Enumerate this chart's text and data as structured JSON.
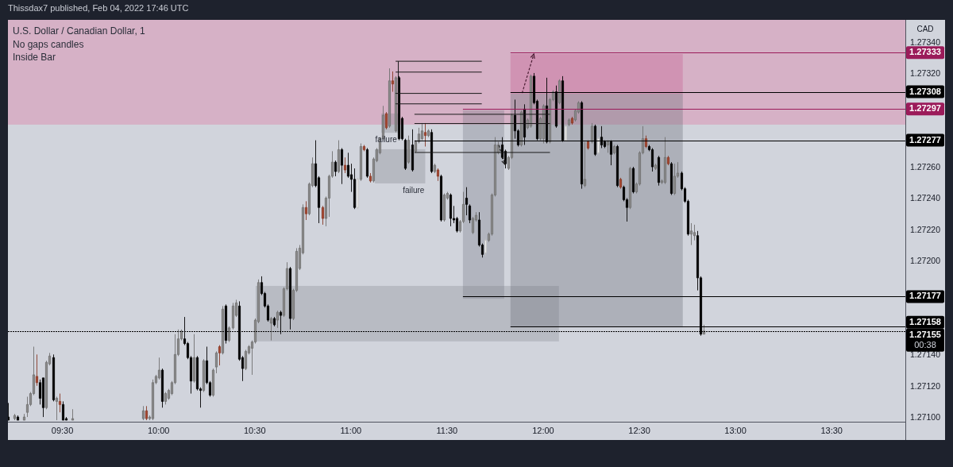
{
  "chart_data": {
    "type": "candlestick",
    "title": "U.S. Dollar / Canadian Dollar, 1",
    "subtitle": "No gaps candles\nInside Bar",
    "ylabel": "CAD",
    "annotations": [
      "Thissdax7 published, Feb 04, 2022 17:46 UTC",
      {
        "text": "failure",
        "x": "2022-02-04T11:11",
        "y": 1.27278
      },
      "failure"
    ],
    "xlim": [
      "2022-02-04T09:13",
      "2022-02-04T13:53"
    ],
    "xticks": [
      {
        "value": "2022-02-04T09:30",
        "label": "09:30"
      },
      {
        "value": "2022-02-04T10:00",
        "label": "10:00"
      },
      {
        "value": "2022-02-04T10:30",
        "label": "10:30"
      },
      {
        "value": "2022-02-04T11:00",
        "label": "11:00"
      },
      {
        "value": "2022-02-04T11:30",
        "label": "11:30"
      },
      {
        "value": "2022-02-04T12:00",
        "label": "12:00"
      },
      {
        "value": "2022-02-04T12:30",
        "label": "12:30"
      },
      {
        "value": "2022-02-04T13:00",
        "label": "13:00"
      },
      {
        "value": "2022-02-04T13:30",
        "label": "13:30"
      }
    ],
    "ylim": [
      1.27097,
      1.27354
    ],
    "yticks": [
      {
        "value": 1.271,
        "label": "1.27100"
      },
      {
        "value": 1.2712,
        "label": "1.27120"
      },
      {
        "value": 1.2714,
        "label": "1.27140"
      },
      {
        "value": 1.272,
        "label": "1.27200"
      },
      {
        "value": 1.2722,
        "label": "1.27220"
      },
      {
        "value": 1.2724,
        "label": "1.27240"
      },
      {
        "value": 1.2726,
        "label": "1.27260"
      },
      {
        "value": 1.2732,
        "label": "1.27320"
      },
      {
        "value": 1.2734,
        "label": "1.27340"
      }
    ],
    "bands": [
      {
        "axis": "y",
        "from": 1.27287,
        "to": 1.27354,
        "color": "#d6b1c6"
      }
    ],
    "ref_lines": [
      {
        "axis": "y",
        "value": 1.27333,
        "label": "1.27333",
        "color": "#9b1b5a"
      },
      {
        "axis": "y",
        "value": 1.27308,
        "label": "1.27308",
        "color": "#000000"
      },
      {
        "axis": "y",
        "value": 1.27297,
        "label": "1.27297",
        "color": "#9b1b5a"
      },
      {
        "axis": "y",
        "value": 1.27277,
        "label": "1.27277",
        "color": "#000000"
      },
      {
        "axis": "y",
        "value": 1.27177,
        "label": "1.27177",
        "color": "#000000"
      },
      {
        "axis": "y",
        "value": 1.27158,
        "label": "1.27158",
        "color": "#000000"
      },
      {
        "axis": "y",
        "value": 1.27155,
        "label": "1.27155\n00:38",
        "color": "#000000",
        "line_style": "dotted"
      }
    ],
    "x": [
      "2022-02-04T09:13",
      "2022-02-04T09:15",
      "2022-02-04T09:16",
      "2022-02-04T09:18",
      "2022-02-04T09:19",
      "2022-02-04T09:20",
      "2022-02-04T09:21",
      "2022-02-04T09:22",
      "2022-02-04T09:23",
      "2022-02-04T09:24",
      "2022-02-04T09:25",
      "2022-02-04T09:26",
      "2022-02-04T09:27",
      "2022-02-04T09:28",
      "2022-02-04T09:29",
      "2022-02-04T09:30",
      "2022-02-04T09:31",
      "2022-02-04T09:33",
      "2022-02-04T09:55",
      "2022-02-04T09:56",
      "2022-02-04T09:57",
      "2022-02-04T09:58",
      "2022-02-04T09:59",
      "2022-02-04T10:00",
      "2022-02-04T10:01",
      "2022-02-04T10:02",
      "2022-02-04T10:03",
      "2022-02-04T10:04",
      "2022-02-04T10:05",
      "2022-02-04T10:06",
      "2022-02-04T10:07",
      "2022-02-04T10:08",
      "2022-02-04T10:09",
      "2022-02-04T10:10",
      "2022-02-04T10:11",
      "2022-02-04T10:12",
      "2022-02-04T10:13",
      "2022-02-04T10:14",
      "2022-02-04T10:15",
      "2022-02-04T10:16",
      "2022-02-04T10:17",
      "2022-02-04T10:18",
      "2022-02-04T10:19",
      "2022-02-04T10:20",
      "2022-02-04T10:21",
      "2022-02-04T10:22",
      "2022-02-04T10:23",
      "2022-02-04T10:24",
      "2022-02-04T10:25",
      "2022-02-04T10:26",
      "2022-02-04T10:27",
      "2022-02-04T10:28",
      "2022-02-04T10:29",
      "2022-02-04T10:30",
      "2022-02-04T10:31",
      "2022-02-04T10:32",
      "2022-02-04T10:33",
      "2022-02-04T10:34",
      "2022-02-04T10:35",
      "2022-02-04T10:36",
      "2022-02-04T10:37",
      "2022-02-04T10:38",
      "2022-02-04T10:39",
      "2022-02-04T10:40",
      "2022-02-04T10:41",
      "2022-02-04T10:42",
      "2022-02-04T10:43",
      "2022-02-04T10:44",
      "2022-02-04T10:45",
      "2022-02-04T10:46",
      "2022-02-04T10:47",
      "2022-02-04T10:48",
      "2022-02-04T10:49",
      "2022-02-04T10:50",
      "2022-02-04T10:51",
      "2022-02-04T10:52",
      "2022-02-04T10:53",
      "2022-02-04T10:54",
      "2022-02-04T10:55",
      "2022-02-04T10:56",
      "2022-02-04T10:57",
      "2022-02-04T10:58",
      "2022-02-04T10:59",
      "2022-02-04T11:00",
      "2022-02-04T11:01",
      "2022-02-04T11:02",
      "2022-02-04T11:03",
      "2022-02-04T11:04",
      "2022-02-04T11:05",
      "2022-02-04T11:06",
      "2022-02-04T11:07",
      "2022-02-04T11:08",
      "2022-02-04T11:09",
      "2022-02-04T11:10",
      "2022-02-04T11:11",
      "2022-02-04T11:12",
      "2022-02-04T11:13",
      "2022-02-04T11:14",
      "2022-02-04T11:15",
      "2022-02-04T11:16",
      "2022-02-04T11:17",
      "2022-02-04T11:18",
      "2022-02-04T11:19",
      "2022-02-04T11:20",
      "2022-02-04T11:21",
      "2022-02-04T11:22",
      "2022-02-04T11:23",
      "2022-02-04T11:24",
      "2022-02-04T11:25",
      "2022-02-04T11:26",
      "2022-02-04T11:27",
      "2022-02-04T11:28",
      "2022-02-04T11:29",
      "2022-02-04T11:30",
      "2022-02-04T11:31",
      "2022-02-04T11:32",
      "2022-02-04T11:33",
      "2022-02-04T11:34",
      "2022-02-04T11:35",
      "2022-02-04T11:36",
      "2022-02-04T11:37",
      "2022-02-04T11:38",
      "2022-02-04T11:39",
      "2022-02-04T11:40",
      "2022-02-04T11:41",
      "2022-02-04T11:42",
      "2022-02-04T11:43",
      "2022-02-04T11:44",
      "2022-02-04T11:45",
      "2022-02-04T11:46",
      "2022-02-04T11:47",
      "2022-02-04T11:48",
      "2022-02-04T11:49",
      "2022-02-04T11:50",
      "2022-02-04T11:51",
      "2022-02-04T11:52",
      "2022-02-04T11:53",
      "2022-02-04T11:54",
      "2022-02-04T11:55",
      "2022-02-04T11:56",
      "2022-02-04T11:57",
      "2022-02-04T11:58",
      "2022-02-04T11:59",
      "2022-02-04T12:00",
      "2022-02-04T12:01",
      "2022-02-04T12:02",
      "2022-02-04T12:03",
      "2022-02-04T12:04",
      "2022-02-04T12:05",
      "2022-02-04T12:06",
      "2022-02-04T12:07",
      "2022-02-04T12:08",
      "2022-02-04T12:09",
      "2022-02-04T12:10",
      "2022-02-04T12:11",
      "2022-02-04T12:12",
      "2022-02-04T12:13",
      "2022-02-04T12:14",
      "2022-02-04T12:15",
      "2022-02-04T12:16",
      "2022-02-04T12:17",
      "2022-02-04T12:18",
      "2022-02-04T12:19",
      "2022-02-04T12:20",
      "2022-02-04T12:21",
      "2022-02-04T12:22",
      "2022-02-04T12:23",
      "2022-02-04T12:24",
      "2022-02-04T12:25",
      "2022-02-04T12:26",
      "2022-02-04T12:27",
      "2022-02-04T12:28",
      "2022-02-04T12:29",
      "2022-02-04T12:30",
      "2022-02-04T12:31",
      "2022-02-04T12:32",
      "2022-02-04T12:33",
      "2022-02-04T12:34",
      "2022-02-04T12:35",
      "2022-02-04T12:36",
      "2022-02-04T12:37",
      "2022-02-04T12:38",
      "2022-02-04T12:39",
      "2022-02-04T12:40",
      "2022-02-04T12:41",
      "2022-02-04T12:42",
      "2022-02-04T12:43",
      "2022-02-04T12:44",
      "2022-02-04T12:45",
      "2022-02-04T12:46",
      "2022-02-04T12:47",
      "2022-02-04T12:48",
      "2022-02-04T12:49",
      "2022-02-04T12:50"
    ],
    "ohlc": [
      [
        1.271,
        1.27109,
        1.27098,
        1.27098
      ],
      [
        1.27099,
        1.27102,
        1.27098,
        1.27101
      ],
      [
        1.271,
        1.27101,
        1.27098,
        1.27098
      ],
      [
        1.27098,
        1.27102,
        1.27098,
        1.271
      ],
      [
        1.27103,
        1.27113,
        1.271,
        1.27108
      ],
      [
        1.27108,
        1.27116,
        1.27107,
        1.27115
      ],
      [
        1.27115,
        1.27145,
        1.27114,
        1.27127
      ],
      [
        1.27126,
        1.2714,
        1.2712,
        1.27122
      ],
      [
        1.27122,
        1.27124,
        1.27108,
        1.27112
      ],
      [
        1.27125,
        1.27125,
        1.271,
        1.27106
      ],
      [
        1.27106,
        1.27136,
        1.27105,
        1.27135
      ],
      [
        1.27134,
        1.27141,
        1.27133,
        1.27139
      ],
      [
        1.27138,
        1.2714,
        1.2711,
        1.27111
      ],
      [
        1.2711,
        1.27113,
        1.27098,
        1.27112
      ],
      [
        1.2711,
        1.27115,
        1.27103,
        1.27108
      ],
      [
        1.27108,
        1.2711,
        1.27098,
        1.27098
      ],
      [
        1.27099,
        1.271,
        1.27098,
        1.27098
      ],
      [
        1.27098,
        1.27105,
        1.27098,
        1.27099
      ],
      [
        1.27099,
        1.27107,
        1.27098,
        1.27104
      ],
      [
        1.27104,
        1.27107,
        1.27098,
        1.27099
      ],
      [
        1.27099,
        1.27101,
        1.27098,
        1.271
      ],
      [
        1.27099,
        1.27124,
        1.27098,
        1.27122
      ],
      [
        1.27122,
        1.27127,
        1.27121,
        1.27126
      ],
      [
        1.27125,
        1.27138,
        1.27124,
        1.2713
      ],
      [
        1.2713,
        1.27131,
        1.27106,
        1.2711
      ],
      [
        1.2711,
        1.27116,
        1.27108,
        1.27115
      ],
      [
        1.27112,
        1.27118,
        1.27111,
        1.27117
      ],
      [
        1.27115,
        1.27123,
        1.27114,
        1.27122
      ],
      [
        1.27122,
        1.27153,
        1.27121,
        1.2714
      ],
      [
        1.2714,
        1.27156,
        1.27139,
        1.2715
      ],
      [
        1.2715,
        1.27156,
        1.27149,
        1.27155
      ],
      [
        1.2715,
        1.27164,
        1.27146,
        1.27147
      ],
      [
        1.27147,
        1.27148,
        1.27137,
        1.27138
      ],
      [
        1.27138,
        1.27139,
        1.27115,
        1.27123
      ],
      [
        1.27123,
        1.27153,
        1.27122,
        1.27138
      ],
      [
        1.27138,
        1.27139,
        1.27117,
        1.27118
      ],
      [
        1.27118,
        1.27119,
        1.27106,
        1.27117
      ],
      [
        1.27117,
        1.27137,
        1.27116,
        1.27136
      ],
      [
        1.27136,
        1.27145,
        1.27121,
        1.27122
      ],
      [
        1.27122,
        1.27123,
        1.27113,
        1.27114
      ],
      [
        1.27114,
        1.27131,
        1.27113,
        1.2713
      ],
      [
        1.27132,
        1.27142,
        1.27128,
        1.27141
      ],
      [
        1.27141,
        1.27146,
        1.27133,
        1.27145
      ],
      [
        1.27141,
        1.27171,
        1.2714,
        1.27169
      ],
      [
        1.27171,
        1.27172,
        1.27147,
        1.27149
      ],
      [
        1.27149,
        1.27158,
        1.27148,
        1.27157
      ],
      [
        1.27157,
        1.27173,
        1.27156,
        1.27171
      ],
      [
        1.27165,
        1.27175,
        1.27164,
        1.27173
      ],
      [
        1.27171,
        1.27174,
        1.27136,
        1.27137
      ],
      [
        1.27138,
        1.27139,
        1.27123,
        1.27131
      ],
      [
        1.27131,
        1.27143,
        1.2713,
        1.27142
      ],
      [
        1.27141,
        1.27146,
        1.2714,
        1.27145
      ],
      [
        1.27144,
        1.27149,
        1.27127,
        1.27148
      ],
      [
        1.27148,
        1.27163,
        1.27147,
        1.27162
      ],
      [
        1.27161,
        1.27188,
        1.2716,
        1.27186
      ],
      [
        1.27186,
        1.2719,
        1.27178,
        1.27179
      ],
      [
        1.27179,
        1.2718,
        1.2717,
        1.27171
      ],
      [
        1.27171,
        1.27172,
        1.27161,
        1.27162
      ],
      [
        1.2716,
        1.27164,
        1.27149,
        1.27163
      ],
      [
        1.27163,
        1.27164,
        1.27158,
        1.27159
      ],
      [
        1.27162,
        1.27168,
        1.27157,
        1.27167
      ],
      [
        1.27167,
        1.27168,
        1.27153,
        1.27165
      ],
      [
        1.27165,
        1.27183,
        1.27164,
        1.27182
      ],
      [
        1.27182,
        1.27199,
        1.27181,
        1.27195
      ],
      [
        1.27195,
        1.27196,
        1.27156,
        1.27163
      ],
      [
        1.27163,
        1.27182,
        1.27162,
        1.27181
      ],
      [
        1.27181,
        1.27208,
        1.2718,
        1.27206
      ],
      [
        1.27195,
        1.2721,
        1.27194,
        1.27208
      ],
      [
        1.27205,
        1.27236,
        1.27204,
        1.27234
      ],
      [
        1.27234,
        1.27238,
        1.27226,
        1.2723
      ],
      [
        1.2723,
        1.2725,
        1.27229,
        1.27249
      ],
      [
        1.27248,
        1.27266,
        1.27247,
        1.27262
      ],
      [
        1.27262,
        1.27277,
        1.27247,
        1.27248
      ],
      [
        1.27253,
        1.27254,
        1.27224,
        1.27234
      ],
      [
        1.27234,
        1.27235,
        1.27223,
        1.27227
      ],
      [
        1.27227,
        1.27241,
        1.27222,
        1.2724
      ],
      [
        1.2724,
        1.27255,
        1.27228,
        1.27254
      ],
      [
        1.27254,
        1.2727,
        1.27253,
        1.27263
      ],
      [
        1.27263,
        1.27264,
        1.27254,
        1.27257
      ],
      [
        1.27257,
        1.27277,
        1.27256,
        1.27271
      ],
      [
        1.27271,
        1.27272,
        1.27249,
        1.27261
      ],
      [
        1.27261,
        1.27266,
        1.27256,
        1.27258
      ],
      [
        1.27261,
        1.27269,
        1.27253,
        1.27254
      ],
      [
        1.27255,
        1.27262,
        1.27244,
        1.27252
      ],
      [
        1.27252,
        1.27259,
        1.27233,
        1.27234
      ],
      [
        1.27234,
        1.27253,
        1.27233,
        1.27252
      ],
      [
        1.27252,
        1.27275,
        1.27251,
        1.27273
      ],
      [
        1.27273,
        1.27274,
        1.2727,
        1.27271
      ],
      [
        1.27271,
        1.27272,
        1.27253,
        1.27254
      ],
      [
        1.27254,
        1.27256,
        1.2725,
        1.27251
      ],
      [
        1.27251,
        1.27266,
        1.2725,
        1.27265
      ],
      [
        1.27264,
        1.27272,
        1.27263,
        1.27271
      ],
      [
        1.27269,
        1.27279,
        1.27268,
        1.27278
      ],
      [
        1.27278,
        1.27299,
        1.27277,
        1.27293
      ],
      [
        1.27294,
        1.27295,
        1.27284,
        1.27285
      ],
      [
        1.27286,
        1.27323,
        1.27285,
        1.27315
      ],
      [
        1.27315,
        1.27321,
        1.27308,
        1.27313
      ],
      [
        1.27283,
        1.27318,
        1.27282,
        1.27317
      ],
      [
        1.27317,
        1.27318,
        1.27277,
        1.27278
      ],
      [
        1.27291,
        1.27292,
        1.27277,
        1.27278
      ],
      [
        1.27277,
        1.27278,
        1.27258,
        1.27259
      ],
      [
        1.27263,
        1.2728,
        1.27262,
        1.27277
      ],
      [
        1.27274,
        1.27284,
        1.27257,
        1.27258
      ],
      [
        1.2727,
        1.27277,
        1.27269,
        1.27276
      ],
      [
        1.27276,
        1.27285,
        1.27275,
        1.27281
      ],
      [
        1.27278,
        1.27288,
        1.27277,
        1.27283
      ],
      [
        1.27282,
        1.27288,
        1.27273,
        1.2728
      ],
      [
        1.2728,
        1.27284,
        1.27279,
        1.27283
      ],
      [
        1.27282,
        1.27284,
        1.27256,
        1.27257
      ],
      [
        1.27257,
        1.27262,
        1.27256,
        1.27261
      ],
      [
        1.27258,
        1.27259,
        1.27251,
        1.27254
      ],
      [
        1.27254,
        1.27255,
        1.27225,
        1.27226
      ],
      [
        1.27226,
        1.27243,
        1.27225,
        1.27242
      ],
      [
        1.2724,
        1.27244,
        1.27239,
        1.27243
      ],
      [
        1.27242,
        1.27243,
        1.27222,
        1.27227
      ],
      [
        1.27227,
        1.27235,
        1.27224,
        1.27226
      ],
      [
        1.27227,
        1.27228,
        1.27218,
        1.27219
      ],
      [
        1.27219,
        1.27226,
        1.27218,
        1.27225
      ],
      [
        1.27225,
        1.27244,
        1.27224,
        1.27236
      ],
      [
        1.2724,
        1.27247,
        1.27229,
        1.27236
      ],
      [
        1.27235,
        1.27236,
        1.27224,
        1.27226
      ],
      [
        1.27218,
        1.27228,
        1.27217,
        1.27227
      ],
      [
        1.27226,
        1.27231,
        1.27225,
        1.27229
      ],
      [
        1.27226,
        1.27231,
        1.27209,
        1.2721
      ],
      [
        1.2721,
        1.27211,
        1.27202,
        1.27204
      ],
      [
        1.27205,
        1.27214,
        1.27203,
        1.27213
      ],
      [
        1.27213,
        1.27218,
        1.27212,
        1.27217
      ],
      [
        1.27217,
        1.27243,
        1.27216,
        1.27242
      ],
      [
        1.27242,
        1.27279,
        1.27241,
        1.27274
      ],
      [
        1.27269,
        1.27276,
        1.27268,
        1.27274
      ],
      [
        1.27274,
        1.27279,
        1.27265,
        1.27266
      ],
      [
        1.2727,
        1.27271,
        1.27259,
        1.27262
      ],
      [
        1.27259,
        1.27267,
        1.27258,
        1.27266
      ],
      [
        1.27266,
        1.27294,
        1.27265,
        1.27293
      ],
      [
        1.27293,
        1.27303,
        1.27278,
        1.27283
      ],
      [
        1.27283,
        1.27284,
        1.27273,
        1.27274
      ],
      [
        1.27274,
        1.27296,
        1.27273,
        1.27295
      ],
      [
        1.27297,
        1.273,
        1.27274,
        1.27279
      ],
      [
        1.27285,
        1.27291,
        1.27284,
        1.2729
      ],
      [
        1.27286,
        1.27319,
        1.27285,
        1.27318
      ],
      [
        1.27318,
        1.2732,
        1.273,
        1.27301
      ],
      [
        1.27302,
        1.27303,
        1.27277,
        1.27278
      ],
      [
        1.27278,
        1.27292,
        1.27277,
        1.27291
      ],
      [
        1.27278,
        1.273,
        1.27275,
        1.27299
      ],
      [
        1.27299,
        1.27317,
        1.27275,
        1.27276
      ],
      [
        1.27276,
        1.27304,
        1.27275,
        1.27303
      ],
      [
        1.27303,
        1.27309,
        1.27302,
        1.27308
      ],
      [
        1.27308,
        1.27312,
        1.27285,
        1.27286
      ],
      [
        1.27301,
        1.27316,
        1.273,
        1.27315
      ],
      [
        1.27315,
        1.27318,
        1.27276,
        1.27277
      ],
      [
        1.27277,
        1.27287,
        1.27276,
        1.27286
      ],
      [
        1.27287,
        1.27291,
        1.27286,
        1.2729
      ],
      [
        1.27291,
        1.27292,
        1.27287,
        1.27288
      ],
      [
        1.2729,
        1.27297,
        1.27289,
        1.27296
      ],
      [
        1.27295,
        1.27302,
        1.27294,
        1.27301
      ],
      [
        1.27301,
        1.27302,
        1.27246,
        1.27249
      ],
      [
        1.27248,
        1.27276,
        1.27247,
        1.27252
      ],
      [
        1.27276,
        1.27277,
        1.27271,
        1.27272
      ],
      [
        1.27276,
        1.27288,
        1.27275,
        1.27286
      ],
      [
        1.27286,
        1.27287,
        1.27267,
        1.27268
      ],
      [
        1.27269,
        1.27279,
        1.27268,
        1.27278
      ],
      [
        1.27279,
        1.27286,
        1.27272,
        1.27274
      ],
      [
        1.27276,
        1.27277,
        1.27272,
        1.27273
      ],
      [
        1.27274,
        1.27277,
        1.27269,
        1.27276
      ],
      [
        1.27276,
        1.27277,
        1.27261,
        1.27268
      ],
      [
        1.27269,
        1.27274,
        1.27268,
        1.27273
      ],
      [
        1.27273,
        1.27274,
        1.27247,
        1.27248
      ],
      [
        1.27252,
        1.27253,
        1.27246,
        1.27247
      ],
      [
        1.27247,
        1.27248,
        1.27238,
        1.27239
      ],
      [
        1.27239,
        1.2724,
        1.27225,
        1.27234
      ],
      [
        1.27234,
        1.2726,
        1.27233,
        1.27259
      ],
      [
        1.27259,
        1.2726,
        1.27243,
        1.27244
      ],
      [
        1.27244,
        1.2725,
        1.27243,
        1.27249
      ],
      [
        1.27249,
        1.2727,
        1.27248,
        1.27269
      ],
      [
        1.27269,
        1.27286,
        1.27268,
        1.27278
      ],
      [
        1.27278,
        1.2728,
        1.27272,
        1.27273
      ],
      [
        1.27273,
        1.27274,
        1.2727,
        1.27271
      ],
      [
        1.27271,
        1.27272,
        1.27257,
        1.2726
      ],
      [
        1.27259,
        1.27262,
        1.27258,
        1.27261
      ],
      [
        1.27266,
        1.27267,
        1.27248,
        1.2725
      ],
      [
        1.2725,
        1.27252,
        1.27249,
        1.27251
      ],
      [
        1.2725,
        1.27279,
        1.27249,
        1.27266
      ],
      [
        1.27266,
        1.27267,
        1.27261,
        1.27262
      ],
      [
        1.27262,
        1.27263,
        1.27242,
        1.27243
      ],
      [
        1.27243,
        1.27262,
        1.27242,
        1.27254
      ],
      [
        1.27254,
        1.27263,
        1.27253,
        1.27256
      ],
      [
        1.27256,
        1.27257,
        1.27245,
        1.27246
      ],
      [
        1.27246,
        1.27247,
        1.27237,
        1.27238
      ],
      [
        1.27238,
        1.27239,
        1.27216,
        1.27217
      ],
      [
        1.27217,
        1.27224,
        1.2721,
        1.27219
      ],
      [
        1.27216,
        1.27223,
        1.27213,
        1.27218
      ],
      [
        1.27216,
        1.27219,
        1.27181,
        1.27189
      ],
      [
        1.27189,
        1.2719,
        1.27152,
        1.27153
      ],
      [
        1.27153,
        1.27159,
        1.27153,
        1.27155
      ]
    ],
    "colors": [
      "#000000",
      "#8c8c8c",
      "#000000",
      "#8c8c8c",
      "#8c8c8c",
      "#8c8c8c",
      "#8c8c8c",
      "#a9472f",
      "#000000",
      "#000000",
      "#8c8c8c",
      "#8c8c8c",
      "#000000",
      "#8c8c8c",
      "#a9472f",
      "#000000",
      "#000000",
      "#8c8c8c",
      "#8c8c8c",
      "#a9472f",
      "#8c8c8c",
      "#8c8c8c",
      "#8c8c8c",
      "#8c8c8c",
      "#000000",
      "#8c8c8c",
      "#8c8c8c",
      "#8c8c8c",
      "#8c8c8c",
      "#8c8c8c",
      "#8c8c8c",
      "#000000",
      "#000000",
      "#000000",
      "#8c8c8c",
      "#000000",
      "#000000",
      "#8c8c8c",
      "#000000",
      "#000000",
      "#8c8c8c",
      "#8c8c8c",
      "#a9472f",
      "#8c8c8c",
      "#000000",
      "#8c8c8c",
      "#8c8c8c",
      "#8c8c8c",
      "#000000",
      "#000000",
      "#8c8c8c",
      "#8c8c8c",
      "#8c8c8c",
      "#8c8c8c",
      "#8c8c8c",
      "#000000",
      "#000000",
      "#000000",
      "#8c8c8c",
      "#000000",
      "#8c8c8c",
      "#000000",
      "#8c8c8c",
      "#8c8c8c",
      "#000000",
      "#8c8c8c",
      "#8c8c8c",
      "#8c8c8c",
      "#8c8c8c",
      "#a9472f",
      "#8c8c8c",
      "#8c8c8c",
      "#000000",
      "#000000",
      "#a9472f",
      "#8c8c8c",
      "#8c8c8c",
      "#8c8c8c",
      "#000000",
      "#8c8c8c",
      "#000000",
      "#a9472f",
      "#000000",
      "#000000",
      "#000000",
      "#eeeeee",
      "#8c8c8c",
      "#a9472f",
      "#000000",
      "#a9472f",
      "#8c8c8c",
      "#8c8c8c",
      "#8c8c8c",
      "#8c8c8c",
      "#a9472f",
      "#8c8c8c",
      "#a9472f",
      "#8c8c8c",
      "#000000",
      "#000000",
      "#000000",
      "#8c8c8c",
      "#000000",
      "#8c8c8c",
      "#8c8c8c",
      "#8c8c8c",
      "#a9472f",
      "#8c8c8c",
      "#000000",
      "#8c8c8c",
      "#a9472f",
      "#000000",
      "#8c8c8c",
      "#8c8c8c",
      "#000000",
      "#000000",
      "#000000",
      "#8c8c8c",
      "#8c8c8c",
      "#000000",
      "#000000",
      "#8c8c8c",
      "#8c8c8c",
      "#000000",
      "#000000",
      "#eeeeee",
      "#8c8c8c",
      "#8c8c8c",
      "#8c8c8c",
      "#8c8c8c",
      "#000000",
      "#000000",
      "#8c8c8c",
      "#8c8c8c",
      "#000000",
      "#000000",
      "#8c8c8c",
      "#000000",
      "#8c8c8c",
      "#8c8c8c",
      "#000000",
      "#000000",
      "#8c8c8c",
      "#8c8c8c",
      "#000000",
      "#8c8c8c",
      "#8c8c8c",
      "#000000",
      "#8c8c8c",
      "#000000",
      "#eeeeee",
      "#8c8c8c",
      "#a9472f",
      "#8c8c8c",
      "#8c8c8c",
      "#000000",
      "#8c8c8c",
      "#a9472f",
      "#8c8c8c",
      "#000000",
      "#eeeeee",
      "#000000",
      "#000000",
      "#8c8c8c",
      "#000000",
      "#8c8c8c",
      "#000000",
      "#a9472f",
      "#000000",
      "#000000",
      "#8c8c8c",
      "#000000",
      "#8c8c8c",
      "#8c8c8c",
      "#8c8c8c",
      "#a9472f",
      "#000000",
      "#000000",
      "#8c8c8c",
      "#000000",
      "#8c8c8c",
      "#8c8c8c",
      "#a9472f",
      "#000000",
      "#8c8c8c",
      "#8c8c8c",
      "#000000",
      "#000000",
      "#000000",
      "#8c8c8c",
      "#8c8c8c",
      "#000000",
      "#000000",
      "#8c8c8c"
    ]
  }
}
